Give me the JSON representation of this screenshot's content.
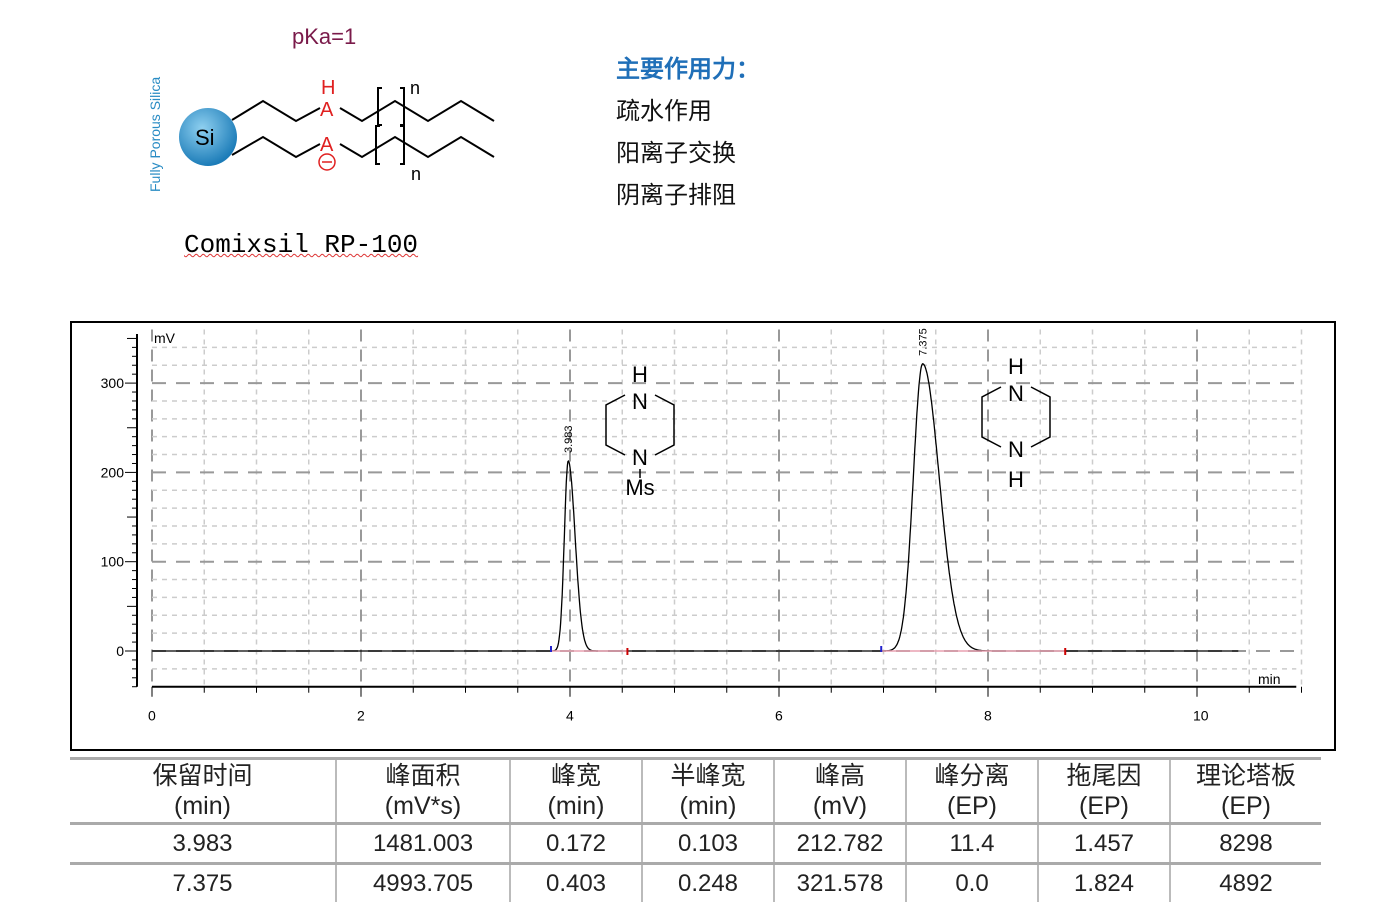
{
  "structure": {
    "pka_label": "pKa=1",
    "support_label": "Fully Porous Silica",
    "bead_label": "Si",
    "atom_h": "H",
    "atom_a": "A",
    "charge": "−",
    "subscript_n": "n"
  },
  "product_name": "Comixsil RP-100",
  "forces": {
    "heading": "主要作用力：",
    "items": [
      "疏水作用",
      "阳离子交换",
      "阴离子排阻"
    ]
  },
  "chart_data": {
    "type": "line",
    "xlabel": "min",
    "ylabel": "mV",
    "xlim": [
      0,
      11
    ],
    "ylim": [
      -40,
      360
    ],
    "xticks": [
      0,
      2,
      4,
      6,
      8,
      10
    ],
    "yticks": [
      0,
      100,
      200,
      300
    ],
    "grid": true,
    "peaks": [
      {
        "retention_time": 3.983,
        "label": "3.983",
        "height": 212.782,
        "half_width": 0.103
      },
      {
        "retention_time": 7.375,
        "label": "7.375",
        "height": 321.578,
        "half_width": 0.248
      }
    ],
    "trace_end": 10.4,
    "annotations": [
      {
        "structure": "N-Ms piperazine",
        "atoms": [
          "H",
          "N",
          "N",
          "Ms"
        ]
      },
      {
        "structure": "piperazine",
        "atoms": [
          "H",
          "N",
          "N",
          "H"
        ]
      }
    ]
  },
  "table": {
    "headers": [
      [
        "保留时间",
        "(min)"
      ],
      [
        "峰面积",
        "(mV*s)"
      ],
      [
        "峰宽",
        "(min)"
      ],
      [
        "半峰宽",
        "(min)"
      ],
      [
        "峰高",
        "(mV)"
      ],
      [
        "峰分离",
        "(EP)"
      ],
      [
        "拖尾因",
        "(EP)"
      ],
      [
        "理论塔板",
        "(EP)"
      ]
    ],
    "rows": [
      [
        "3.983",
        "1481.003",
        "0.172",
        "0.103",
        "212.782",
        "11.4",
        "1.457",
        "8298"
      ],
      [
        "7.375",
        "4993.705",
        "0.403",
        "0.248",
        "321.578",
        "0.0",
        "1.824",
        "4892"
      ]
    ]
  }
}
